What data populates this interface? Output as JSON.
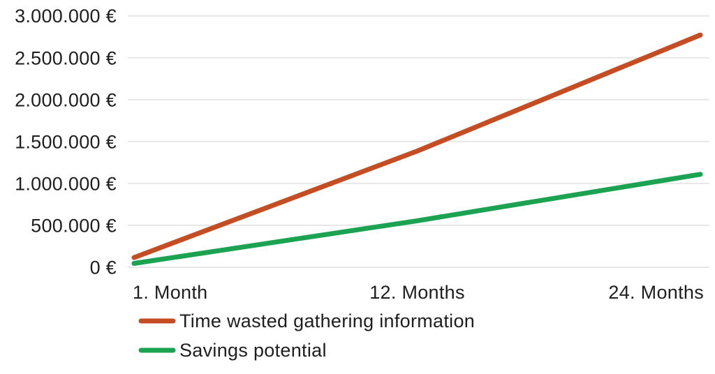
{
  "chart_data": {
    "type": "line",
    "title": "",
    "xlabel": "",
    "ylabel": "",
    "x_categories": [
      "1. Month",
      "12. Months",
      "24. Months"
    ],
    "x_months": [
      1,
      12,
      24
    ],
    "y_ticks": [
      0,
      500000,
      1000000,
      1500000,
      2000000,
      2500000,
      3000000
    ],
    "y_tick_labels": [
      "0 €",
      "500.000 €",
      "1.000.000 €",
      "1.500.000 €",
      "2.000.000 €",
      "2.500.000 €",
      "3.000.000 €"
    ],
    "ylim": [
      0,
      3000000
    ],
    "currency_format": "de-DE EUR",
    "grid": "horizontal-only",
    "legend_position": "bottom-left",
    "series": [
      {
        "name": "Time wasted gathering information",
        "color": "#c44d23",
        "values": [
          115500,
          1386000,
          2772000
        ]
      },
      {
        "name": "Savings potential",
        "color": "#1ca351",
        "values": [
          46200,
          554400,
          1108800
        ]
      }
    ]
  },
  "colors": {
    "background": "#ffffff",
    "grid": "#e7e7e7",
    "text": "#1e1e1e"
  }
}
